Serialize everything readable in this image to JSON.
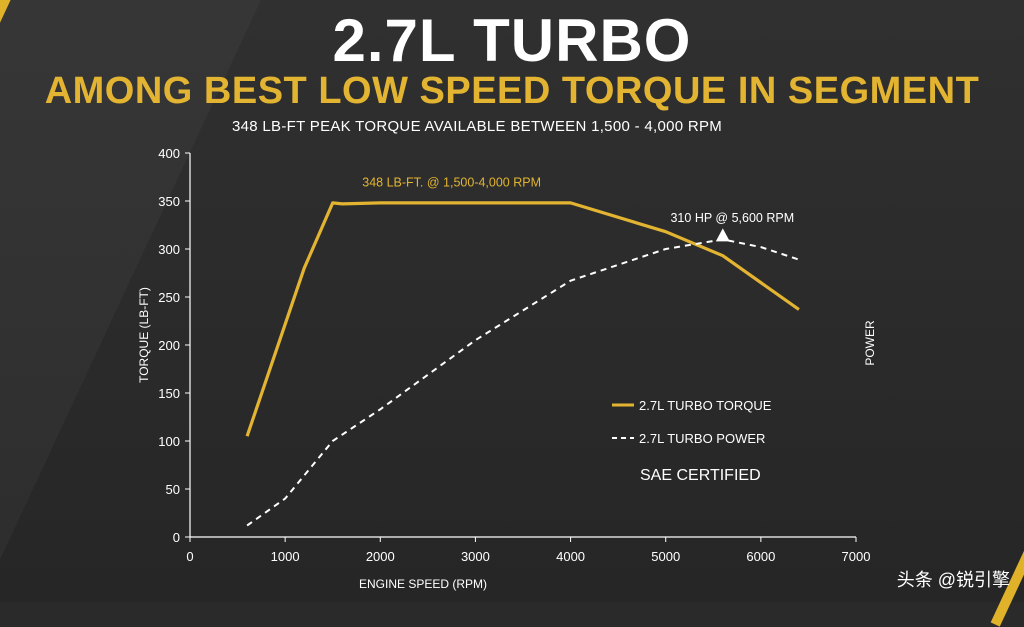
{
  "header": {
    "title": "2.7L TURBO",
    "subtitle": "AMONG BEST LOW SPEED TORQUE IN SEGMENT",
    "note": "348 LB-FT PEAK TORQUE AVAILABLE BETWEEN 1,500 - 4,000 RPM"
  },
  "colors": {
    "accent": "#e2b431",
    "power": "#ffffff",
    "background": "#2a2a2a"
  },
  "chart_data": {
    "type": "line",
    "xlabel": "ENGINE SPEED (RPM)",
    "ylabel": "TORQUE (LB-FT)",
    "y2label": "POWER",
    "xlim": [
      0,
      7000
    ],
    "ylim": [
      0,
      400
    ],
    "xticks": [
      0,
      1000,
      2000,
      3000,
      4000,
      5000,
      6000,
      7000
    ],
    "yticks": [
      0,
      50,
      100,
      150,
      200,
      250,
      300,
      350,
      400
    ],
    "grid": false,
    "legend_position": "lower-right",
    "series": [
      {
        "name": "2.7L TURBO TORQUE",
        "style": "solid",
        "color": "#e2b431",
        "x": [
          600,
          1200,
          1500,
          1600,
          2000,
          3000,
          4000,
          5000,
          5600,
          6400
        ],
        "y": [
          105,
          280,
          348,
          347,
          348,
          348,
          348,
          318,
          293,
          237
        ]
      },
      {
        "name": "2.7L TURBO POWER",
        "style": "dashed",
        "color": "#ffffff",
        "x": [
          600,
          1000,
          1500,
          2000,
          3000,
          4000,
          5000,
          5600,
          6000,
          6400
        ],
        "y": [
          12,
          40,
          100,
          133,
          205,
          267,
          300,
          310,
          302,
          289
        ]
      }
    ],
    "annotations": [
      {
        "text": "348 LB-FT. @ 1,500-4,000 RPM",
        "x": 2750,
        "y": 365
      },
      {
        "text": "310 HP @ 5,600 RPM",
        "x": 5700,
        "y": 328
      }
    ],
    "markers": [
      {
        "shape": "triangle",
        "x": 5600,
        "y": 310
      }
    ],
    "extra_text": "SAE CERTIFIED"
  },
  "watermark": "头条 @锐引擎"
}
